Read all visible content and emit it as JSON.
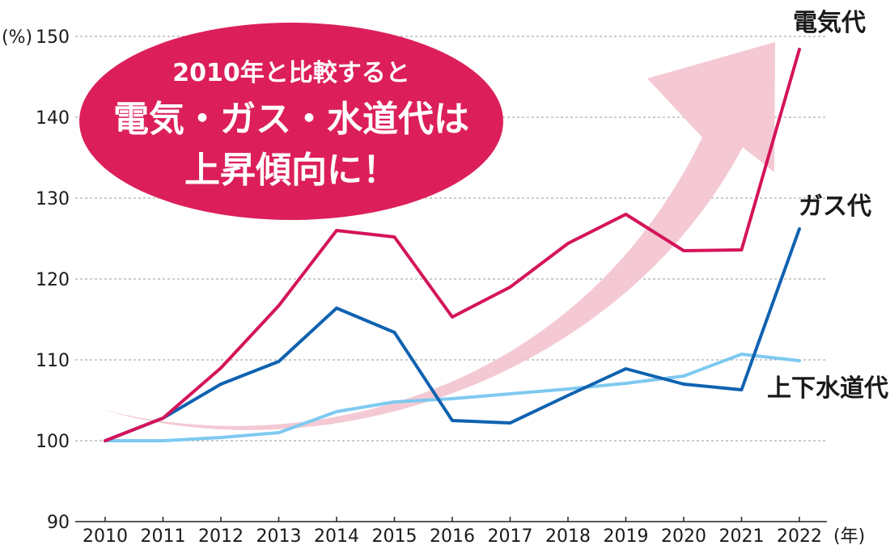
{
  "chart_data": {
    "type": "line",
    "categories": [
      "2010",
      "2011",
      "2012",
      "2013",
      "2014",
      "2015",
      "2016",
      "2017",
      "2018",
      "2019",
      "2020",
      "2021",
      "2022"
    ],
    "series": [
      {
        "name": "電気代",
        "color": "#d4145a",
        "values": [
          100,
          102.8,
          109,
          116.7,
          126,
          125.2,
          115.3,
          119,
          124.4,
          128,
          123.5,
          123.6,
          148.4
        ]
      },
      {
        "name": "ガス代",
        "color": "#0f62b0",
        "values": [
          100,
          102.8,
          107,
          109.8,
          116.4,
          113.4,
          102.5,
          102.2,
          105.6,
          108.9,
          107,
          106.3,
          126.2
        ]
      },
      {
        "name": "上下水道代",
        "color": "#7ec9f0",
        "values": [
          100,
          100,
          100.4,
          101,
          103.6,
          104.8,
          105.2,
          105.8,
          106.4,
          107.1,
          108,
          110.7,
          109.9
        ]
      }
    ],
    "y_unit": "(%)",
    "x_unit": "(年)",
    "ylim": [
      90,
      150
    ],
    "y_ticks": [
      "90",
      "100",
      "110",
      "120",
      "130",
      "140",
      "150"
    ],
    "grid": "dashed horizontal",
    "legend": "direct labels at line ends",
    "trend_arrow_color": "#f3c3cf"
  },
  "callout": {
    "line1": "2010年と比較すると",
    "line2": "電気・ガス・水道代は",
    "line3": "上昇傾向に！",
    "background": "#dc1f5a"
  }
}
